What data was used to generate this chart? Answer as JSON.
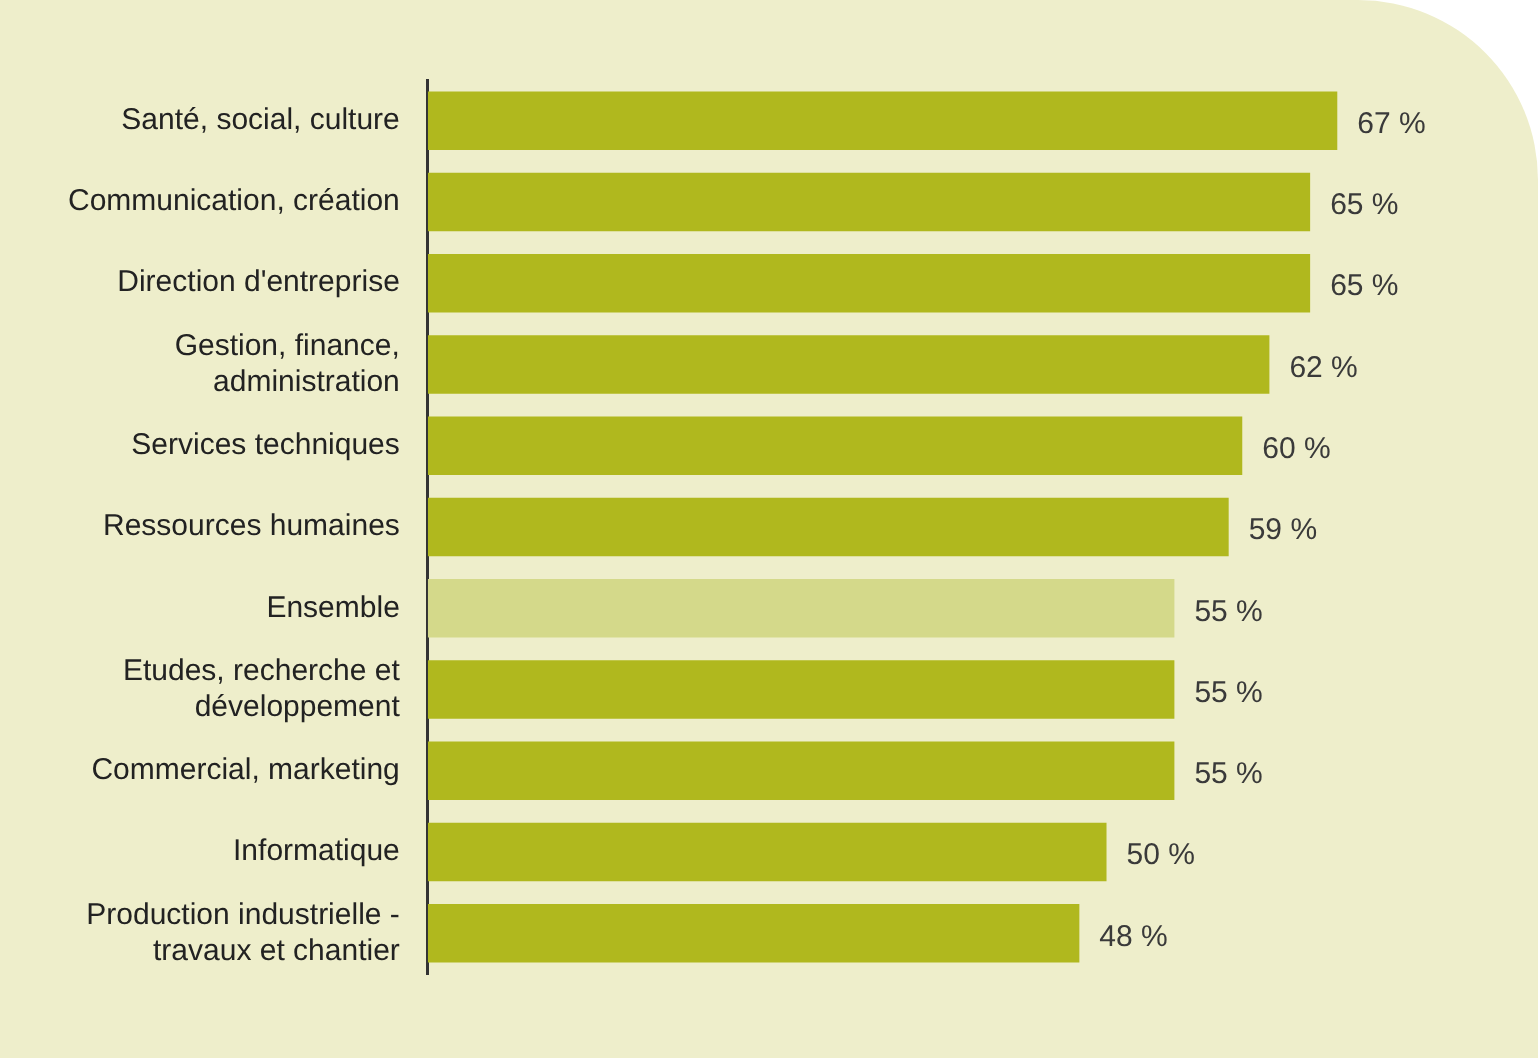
{
  "chart_data": {
    "type": "bar",
    "orientation": "horizontal",
    "categories": [
      "Santé, social, culture",
      "Communication, création",
      "Direction d'entreprise",
      "Gestion, finance, administration",
      "Services techniques",
      "Ressources humaines",
      "Ensemble",
      "Etudes, recherche et développement",
      "Commercial, marketing",
      "Informatique",
      "Production industrielle - travaux et chantier"
    ],
    "values": [
      67,
      65,
      65,
      62,
      60,
      59,
      55,
      55,
      55,
      50,
      48
    ],
    "value_labels": [
      "67 %",
      "65 %",
      "65 %",
      "62 %",
      "60 %",
      "59 %",
      "55 %",
      "55 %",
      "55 %",
      "50 %",
      "48 %"
    ],
    "colors": [
      "#b0b81e",
      "#b0b81e",
      "#b0b81e",
      "#b0b81e",
      "#b0b81e",
      "#b0b81e",
      "#d4d98a",
      "#b0b81e",
      "#b0b81e",
      "#b0b81e",
      "#b0b81e"
    ],
    "tick_labels": "y",
    "grid": false,
    "legend": false
  }
}
